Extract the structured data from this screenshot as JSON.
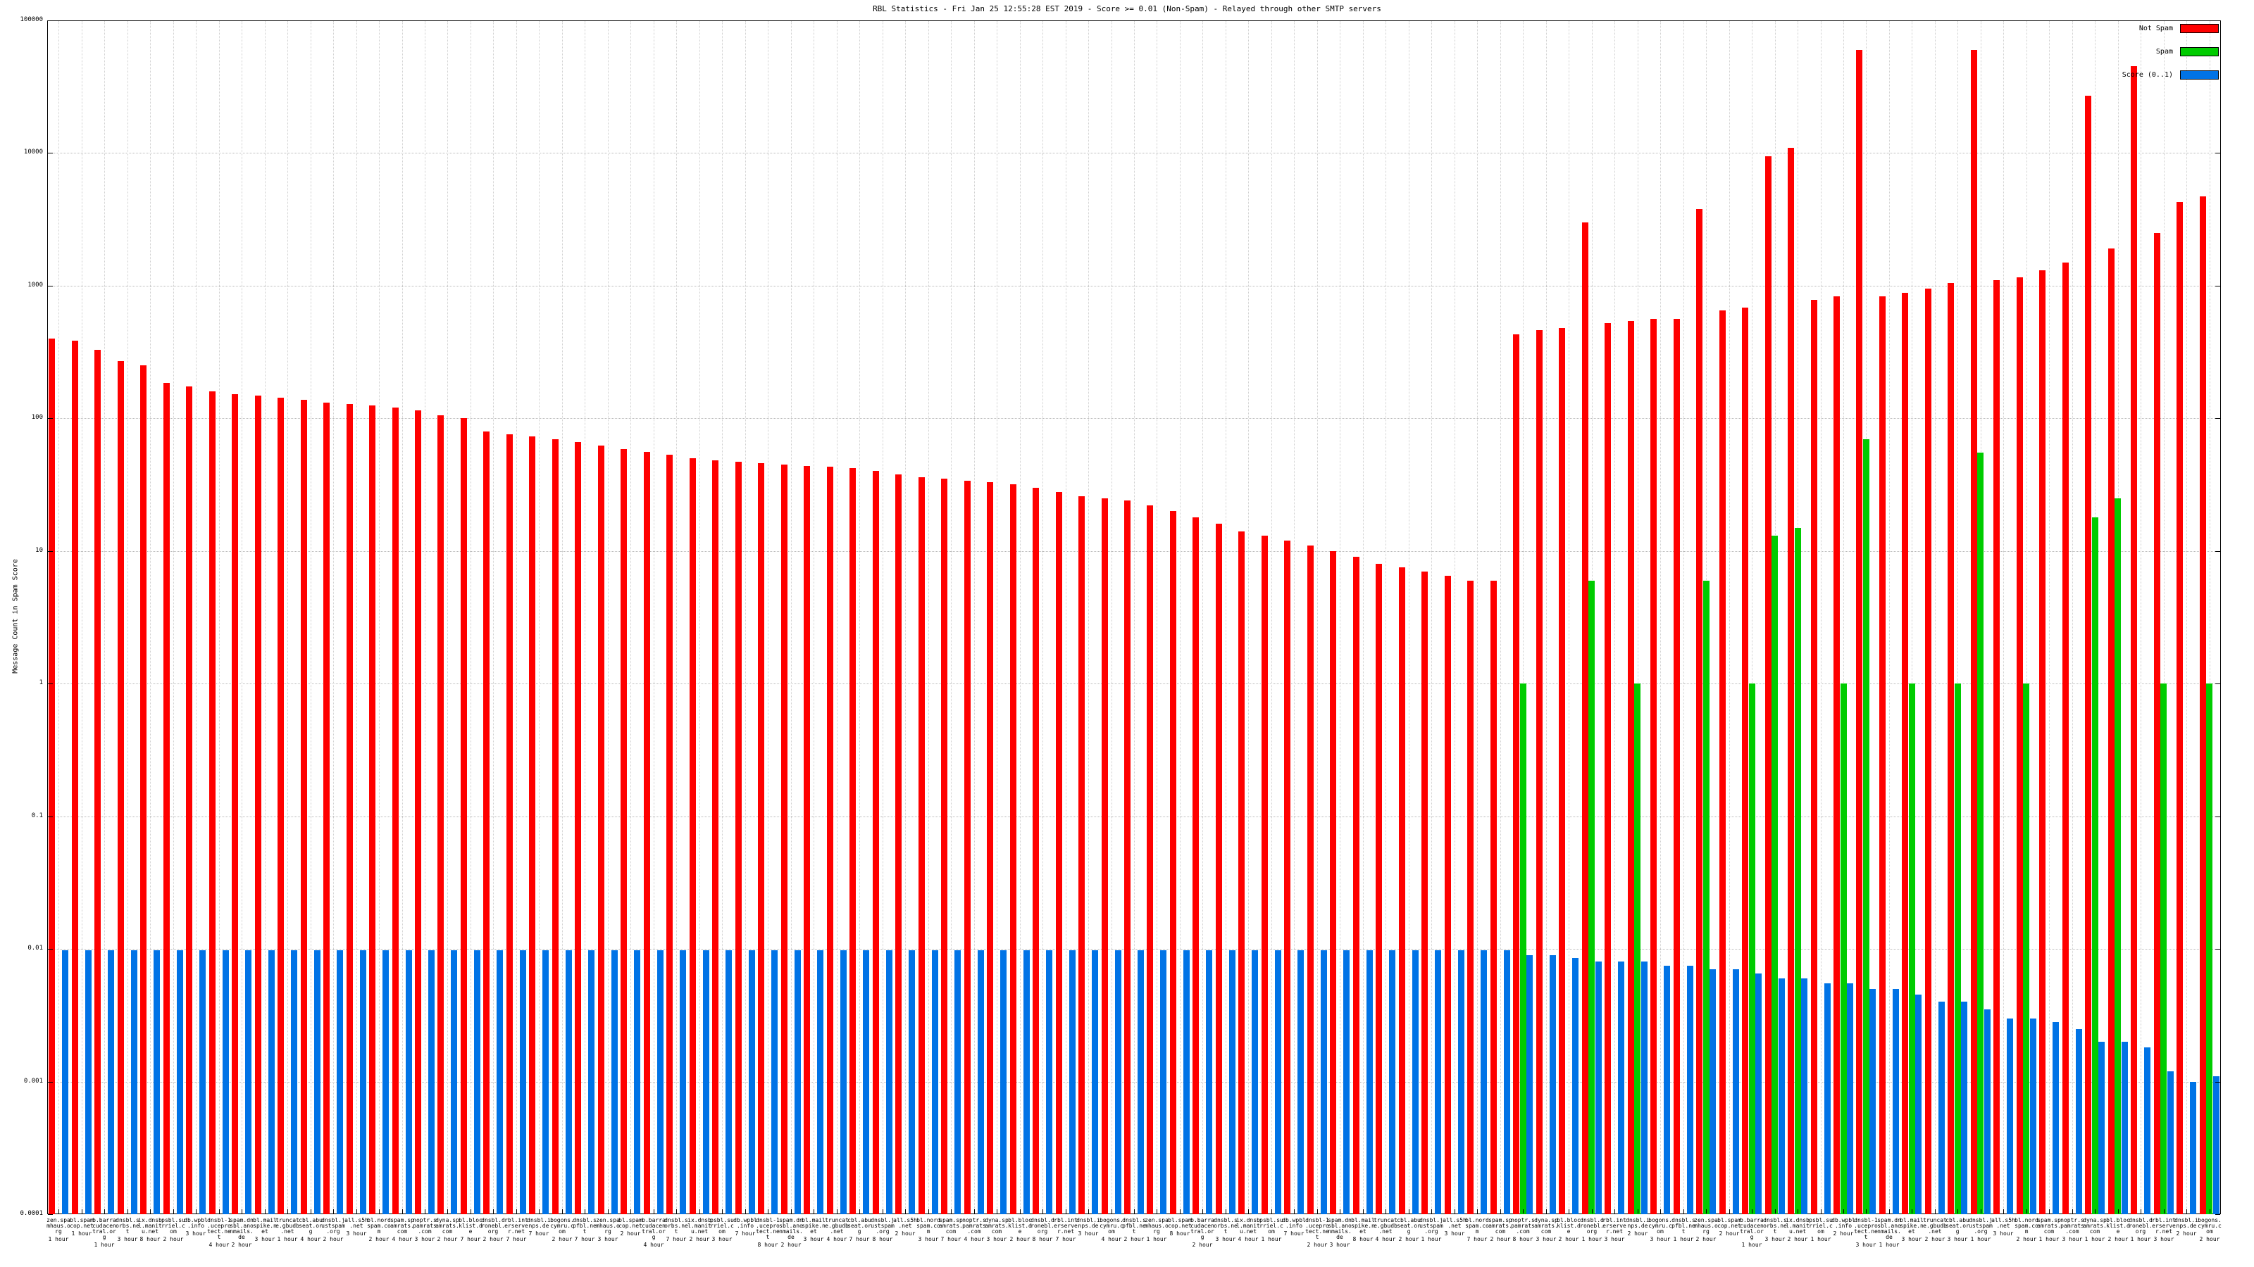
{
  "title": "RBL Statistics - Fri Jan 25 12:55:28 EST 2019 - Score >= 0.01 (Non-Spam) - Relayed through other SMTP servers",
  "y_axis": {
    "label": "Message Count in Spam Score",
    "ticks": [
      "0.0001",
      "0.001",
      "0.01",
      "0.1",
      "1",
      "10",
      "100",
      "1000",
      "10000",
      "100000"
    ],
    "min": 0.0001,
    "max": 100000
  },
  "legend": [
    {
      "label": "Not Spam",
      "color": "#ff0000"
    },
    {
      "label": "Spam",
      "color": "#00cc00"
    },
    {
      "label": "Score (0..1)",
      "color": "#0073e6"
    }
  ],
  "chart_data": {
    "type": "bar",
    "log_scale": true,
    "ylim": [
      0.0001,
      100000
    ],
    "grid": true,
    "legend_position": "top-right",
    "series_names": [
      "Not Spam",
      "Spam",
      "Score (0..1)"
    ],
    "rbls": [
      "zen.spamhaus.org",
      "bl.spamcop.net",
      "b.barracudacentral.org",
      "dnsbl.sorbs.net",
      "ix.dnsbl.manitu.net",
      "psbl.surriel.com",
      "db.wpbl.info",
      "dnsbl-1.uceprotect.net",
      "spam.dnsbl.anonmails.de",
      "bl.mailspike.net",
      "truncate.gbudb.net",
      "cbl.abuseat.org",
      "dnsbl.justspam.org",
      "all.s5h.net",
      "bl.nordspam.com",
      "spam.spamrats.com",
      "noptr.spamrats.com",
      "dyna.spamrats.com",
      "bl.blocklist.de",
      "dnsbl.dronebl.org",
      "rbl.interserver.net",
      "dnsbl.inps.de",
      "bogons.cymru.com",
      "dnsbl.spfbl.net",
      "zen.spamhaus.org",
      "bl.spamcop.net",
      "b.barracudacentral.org",
      "dnsbl.sorbs.net",
      "ix.dnsbl.manitu.net",
      "psbl.surriel.com",
      "db.wpbl.info",
      "dnsbl-1.uceprotect.net",
      "spam.dnsbl.anonmails.de",
      "bl.mailspike.net",
      "truncate.gbudb.net",
      "cbl.abuseat.org",
      "dnsbl.justspam.org",
      "all.s5h.net",
      "bl.nordspam.com",
      "spam.spamrats.com",
      "noptr.spamrats.com",
      "dyna.spamrats.com",
      "bl.blocklist.de",
      "dnsbl.dronebl.org",
      "rbl.interserver.net",
      "dnsbl.inps.de",
      "bogons.cymru.com",
      "dnsbl.spfbl.net",
      "zen.spamhaus.org",
      "bl.spamcop.net",
      "b.barracudacentral.org",
      "dnsbl.sorbs.net",
      "ix.dnsbl.manitu.net",
      "psbl.surriel.com",
      "db.wpbl.info",
      "dnsbl-1.uceprotect.net",
      "spam.dnsbl.anonmails.de",
      "bl.mailspike.net",
      "truncate.gbudb.net",
      "cbl.abuseat.org",
      "dnsbl.justspam.org",
      "all.s5h.net",
      "bl.nordspam.com",
      "spam.spamrats.com",
      "noptr.spamrats.com",
      "dyna.spamrats.com",
      "bl.blocklist.de",
      "dnsbl.dronebl.org",
      "rbl.interserver.net",
      "dnsbl.inps.de",
      "bogons.cymru.com",
      "dnsbl.spfbl.net",
      "zen.spamhaus.org",
      "bl.spamcop.net",
      "b.barracudacentral.org",
      "dnsbl.sorbs.net",
      "ix.dnsbl.manitu.net",
      "psbl.surriel.com",
      "db.wpbl.info",
      "dnsbl-1.uceprotect.net",
      "spam.dnsbl.anonmails.de",
      "bl.mailspike.net",
      "truncate.gbudb.net",
      "cbl.abuseat.org",
      "dnsbl.justspam.org",
      "all.s5h.net",
      "bl.nordspam.com",
      "spam.spamrats.com",
      "noptr.spamrats.com",
      "dyna.spamrats.com",
      "bl.blocklist.de",
      "dnsbl.dronebl.org",
      "rbl.interserver.net",
      "dnsbl.inps.de",
      "bogons.cymru.com"
    ],
    "windows": [
      "1 hour",
      "1 hour",
      "1 hour",
      "3 hour",
      "8 hour",
      "2 hour",
      "3 hour",
      "4 hour",
      "2 hour",
      "3 hour",
      "1 hour",
      "4 hour",
      "2 hour",
      "3 hour",
      "2 hour",
      "4 hour",
      "3 hour",
      "2 hour",
      "7 hour",
      "2 hour",
      "7 hour",
      "7 hour",
      "2 hour",
      "7 hour",
      "3 hour",
      "2 hour",
      "4 hour",
      "7 hour",
      "2 hour",
      "3 hour",
      "7 hour",
      "8 hour",
      "2 hour",
      "3 hour",
      "4 hour",
      "7 hour",
      "8 hour",
      "2 hour",
      "3 hour",
      "7 hour",
      "4 hour",
      "3 hour",
      "2 hour",
      "8 hour",
      "7 hour",
      "3 hour",
      "4 hour",
      "2 hour",
      "1 hour",
      "8 hour",
      "2 hour",
      "3 hour",
      "4 hour",
      "1 hour",
      "7 hour",
      "2 hour",
      "3 hour",
      "8 hour",
      "4 hour",
      "2 hour",
      "1 hour",
      "3 hour",
      "7 hour",
      "2 hour",
      "8 hour",
      "3 hour",
      "2 hour",
      "1 hour",
      "3 hour",
      "2 hour",
      "3 hour",
      "1 hour",
      "2 hour",
      "2 hour",
      "1 hour",
      "3 hour",
      "2 hour",
      "1 hour",
      "2 hour",
      "3 hour",
      "1 hour",
      "3 hour",
      "2 hour",
      "3 hour",
      "1 hour",
      "3 hour",
      "2 hour",
      "1 hour",
      "3 hour",
      "1 hour",
      "2 hour",
      "1 hour",
      "3 hour",
      "2 hour",
      "2 hour"
    ],
    "series": [
      {
        "name": "Not Spam",
        "values": [
          400,
          385,
          330,
          270,
          250,
          185,
          175,
          160,
          152,
          148,
          143,
          138,
          132,
          128,
          125,
          120,
          115,
          105,
          100,
          80,
          76,
          73,
          70,
          66,
          62,
          59,
          56,
          53,
          50,
          48,
          47,
          46,
          45,
          44,
          43,
          42,
          40,
          38,
          36,
          35,
          34,
          33,
          32,
          30,
          28,
          26,
          25,
          24,
          22,
          20,
          18,
          16,
          14,
          13,
          12,
          11,
          10,
          9,
          8,
          7.5,
          7,
          6.5,
          6,
          6,
          430,
          460,
          480,
          3000,
          520,
          540,
          560,
          560,
          3800,
          650,
          680,
          9500,
          11000,
          780,
          830,
          60000,
          830,
          880,
          950,
          1050,
          60000,
          1100,
          1150,
          1300,
          1500,
          27000,
          1900,
          45000,
          2500,
          4300,
          4700
        ]
      },
      {
        "name": "Spam",
        "values": [
          0,
          0,
          0,
          0,
          0,
          0,
          0,
          0,
          0,
          0,
          0,
          0,
          0,
          0,
          0,
          0,
          0,
          0,
          0,
          0,
          0,
          0,
          0,
          0,
          0,
          0,
          0,
          0,
          0,
          0,
          0,
          0,
          0,
          0,
          0,
          0,
          0,
          0,
          0,
          0,
          0,
          0,
          0,
          0,
          0,
          0,
          0,
          0,
          0,
          0,
          0,
          0,
          0,
          0,
          0,
          0,
          0,
          0,
          0,
          0,
          0,
          0,
          0,
          0,
          1,
          0,
          0,
          6,
          0,
          1,
          0,
          0,
          6,
          0,
          1,
          13,
          15,
          0,
          1,
          70,
          0,
          1,
          0,
          1,
          55,
          0,
          1,
          0,
          0,
          18,
          25,
          0,
          1,
          0,
          1
        ]
      },
      {
        "name": "Score (0..1)",
        "values": [
          0.0098,
          0.0098,
          0.0098,
          0.0098,
          0.0098,
          0.0098,
          0.0098,
          0.0098,
          0.0098,
          0.0098,
          0.0098,
          0.0098,
          0.0098,
          0.0098,
          0.0098,
          0.0098,
          0.0098,
          0.0098,
          0.0098,
          0.0098,
          0.0098,
          0.0098,
          0.0098,
          0.0098,
          0.0098,
          0.0098,
          0.0098,
          0.0098,
          0.0098,
          0.0098,
          0.0098,
          0.0098,
          0.0098,
          0.0098,
          0.0098,
          0.0098,
          0.0098,
          0.0098,
          0.0098,
          0.0098,
          0.0098,
          0.0098,
          0.0098,
          0.0098,
          0.0098,
          0.0098,
          0.0098,
          0.0098,
          0.0098,
          0.0098,
          0.0098,
          0.0098,
          0.0098,
          0.0098,
          0.0098,
          0.0098,
          0.0098,
          0.0098,
          0.0098,
          0.0098,
          0.0098,
          0.0098,
          0.0098,
          0.0098,
          0.009,
          0.009,
          0.0085,
          0.008,
          0.008,
          0.008,
          0.0075,
          0.0075,
          0.007,
          0.007,
          0.0065,
          0.006,
          0.006,
          0.0055,
          0.0055,
          0.005,
          0.005,
          0.0045,
          0.004,
          0.004,
          0.0035,
          0.003,
          0.003,
          0.0028,
          0.0025,
          0.002,
          0.002,
          0.0018,
          0.0012,
          0.001,
          0.0011
        ]
      }
    ]
  }
}
